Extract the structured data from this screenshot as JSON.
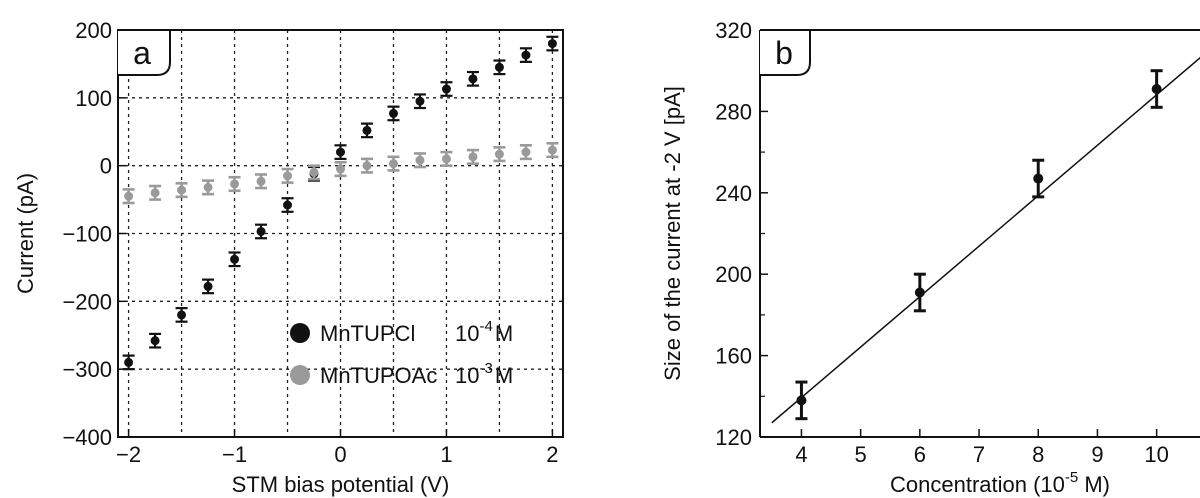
{
  "chart_data": [
    {
      "panel": "a",
      "type": "scatter",
      "xlabel": "STM bias potential (V)",
      "ylabel": "Current (pA)",
      "xlim": [
        -2.1,
        2.1
      ],
      "ylim": [
        -400,
        200
      ],
      "xticks": [
        -2,
        -1,
        0,
        1,
        2
      ],
      "xtick_labels": [
        "−2",
        "−1",
        "0",
        "1",
        "2"
      ],
      "yticks": [
        -400,
        -300,
        -200,
        -100,
        0,
        100,
        200
      ],
      "ytick_labels": [
        "−400",
        "−300",
        "−200",
        "−100",
        "0",
        "100",
        "200"
      ],
      "grid": "dotted, every 0.5 V and 100 pA",
      "legend_position": "bottom-right",
      "series": [
        {
          "name": "MnTUPCl",
          "legend_conc": "10",
          "legend_exp": "-4",
          "legend_unit": "M",
          "color": "#111111",
          "x": [
            -2,
            -1.75,
            -1.5,
            -1.25,
            -1,
            -0.75,
            -0.5,
            -0.25,
            0,
            0.25,
            0.5,
            0.75,
            1,
            1.25,
            1.5,
            1.75,
            2
          ],
          "y": [
            -290,
            -258,
            -220,
            -178,
            -138,
            -97,
            -58,
            -12,
            20,
            52,
            77,
            95,
            113,
            128,
            145,
            163,
            180
          ],
          "err": [
            10,
            10,
            10,
            10,
            10,
            10,
            10,
            10,
            10,
            10,
            10,
            10,
            10,
            10,
            10,
            10,
            10
          ]
        },
        {
          "name": "MnTUPOAc",
          "legend_conc": "10",
          "legend_exp": "-3",
          "legend_unit": "M",
          "color": "#9a9a9a",
          "x": [
            -2,
            -1.75,
            -1.5,
            -1.25,
            -1,
            -0.75,
            -0.5,
            -0.25,
            0,
            0.25,
            0.5,
            0.75,
            1,
            1.25,
            1.5,
            1.75,
            2
          ],
          "y": [
            -45,
            -40,
            -36,
            -32,
            -27,
            -23,
            -15,
            -10,
            -5,
            0,
            3,
            8,
            10,
            13,
            17,
            20,
            23
          ],
          "err": [
            10,
            10,
            10,
            10,
            10,
            10,
            10,
            10,
            10,
            10,
            10,
            10,
            10,
            10,
            10,
            10,
            10
          ]
        }
      ]
    },
    {
      "panel": "b",
      "type": "scatter",
      "xlabel_main": "Concentration (10",
      "xlabel_exp": "-5",
      "xlabel_tail": " M)",
      "ylabel": "Size of the current at -2 V [pA]",
      "xlim": [
        3.3,
        10.8
      ],
      "ylim": [
        120,
        320
      ],
      "xticks": [
        4,
        5,
        6,
        7,
        8,
        9,
        10
      ],
      "xtick_labels": [
        "4",
        "5",
        "6",
        "7",
        "8",
        "9",
        "10"
      ],
      "yticks": [
        120,
        160,
        200,
        240,
        280,
        320
      ],
      "ytick_labels": [
        "120",
        "160",
        "200",
        "240",
        "280",
        "320"
      ],
      "grid": "off",
      "series": [
        {
          "x": [
            4,
            6,
            8,
            10
          ],
          "y": [
            138,
            191,
            247,
            291
          ],
          "err": [
            9,
            9,
            9,
            9
          ],
          "color": "#111111"
        }
      ],
      "fit_line": {
        "x": [
          3.5,
          10.8
        ],
        "y": [
          127,
          308
        ]
      }
    }
  ]
}
